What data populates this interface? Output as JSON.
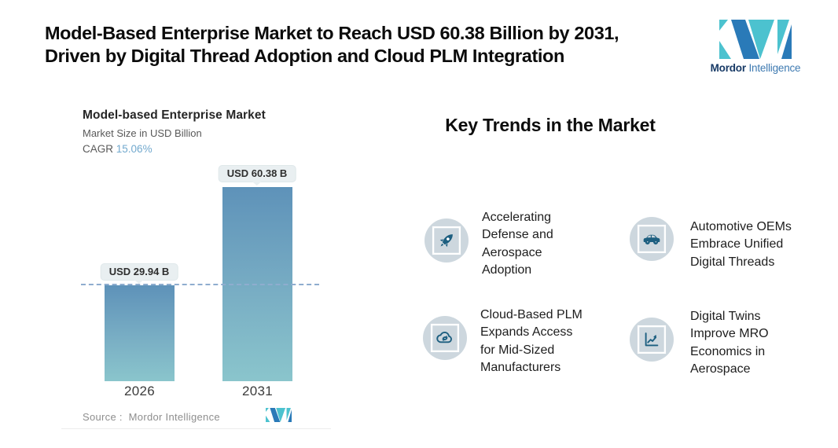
{
  "header": {
    "title_lines": [
      "Model-Based Enterprise Market to Reach USD 60.38 Billion by 2031,",
      "Driven by Digital Thread Adoption and Cloud PLM Integration"
    ],
    "brand": {
      "bold": "Mordor",
      "light": "Intelligence"
    }
  },
  "chart": {
    "title": "Model-based Enterprise Market",
    "subtitle": "Market Size in USD Billion",
    "cagr_label": "CAGR",
    "cagr_value": "15.06%",
    "source_label": "Source :",
    "source_value": "Mordor Intelligence"
  },
  "chart_data": {
    "type": "bar",
    "categories": [
      "2026",
      "2031"
    ],
    "values": [
      29.94,
      60.38
    ],
    "value_labels": [
      "USD 29.94 B",
      "USD 60.38 B"
    ],
    "title": "Model-based Enterprise Market",
    "xlabel": "",
    "ylabel": "Market Size in USD Billion",
    "cagr": "15.06%",
    "ylim": [
      0,
      65
    ],
    "reference_line_at": 29.94,
    "grid": false,
    "legend": false,
    "bar_colors": {
      "top": "#5e92b9",
      "bottom": "#8ac5cc"
    },
    "reference_line_color": "#8fadcf"
  },
  "trends": {
    "heading": "Key Trends in the Market",
    "items": [
      {
        "icon": "rocket-icon",
        "text": "Accelerating\nDefense and\nAerospace\nAdoption"
      },
      {
        "icon": "car-icon",
        "text": "Automotive OEMs\nEmbrace Unified\nDigital Threads"
      },
      {
        "icon": "cloud-sync-icon",
        "text": "Cloud-Based PLM\nExpands Access\nfor Mid-Sized\nManufacturers"
      },
      {
        "icon": "chart-line-icon",
        "text": "Digital Twins\nImprove MRO\nEconomics in\nAerospace"
      }
    ]
  },
  "colors": {
    "accent_blue": "#2a7ab8",
    "accent_teal": "#4cc2cf",
    "icon_ink": "#1d5f80",
    "icon_circle_bg": "#cdd7de",
    "callout_bg": "#e9eff1"
  }
}
